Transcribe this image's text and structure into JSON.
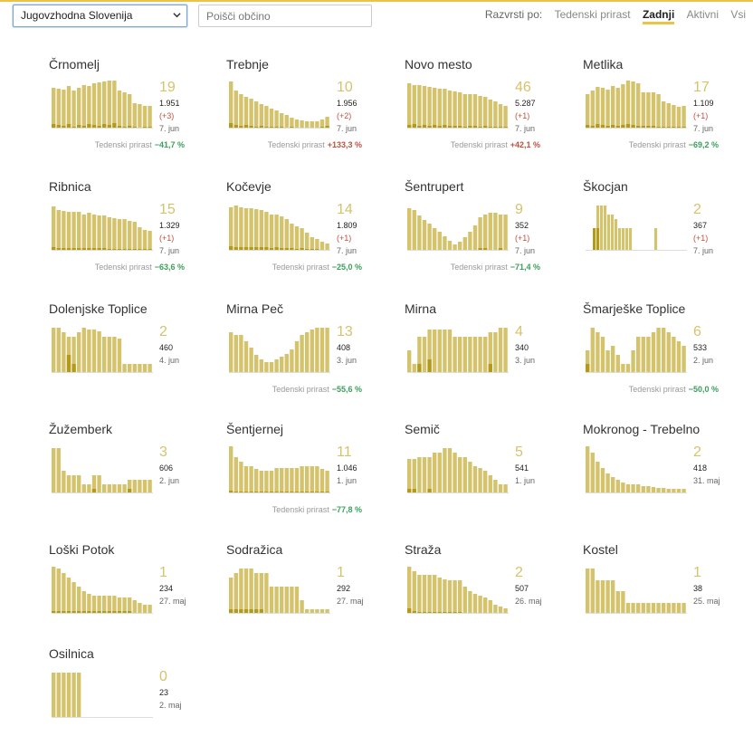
{
  "header": {
    "region": "Jugovzhodna Slovenija",
    "search_placeholder": "Poišči občino",
    "sort_label": "Razvrsti po:",
    "sort_options": [
      "Tedenski prirast",
      "Zadnji",
      "Aktivni",
      "Vsi"
    ],
    "active_sort": "Zadnji"
  },
  "colors": {
    "bar_total": "#d5c36c",
    "bar_new": "#b59a1a",
    "neg_growth": "#3aa05a",
    "pos_growth": "#c0503f",
    "accent": "#e8c547"
  },
  "growth_label": "Tedenski prirast",
  "municipalities": [
    {
      "name": "Črnomelj",
      "num": "19",
      "total": "1.951",
      "delta": "(+3)",
      "date": "7. jun",
      "growth": "−41,7 %",
      "trend": "neg",
      "bars": [
        45,
        44,
        43,
        47,
        42,
        45,
        48,
        47,
        50,
        51,
        52,
        53,
        53,
        42,
        40,
        38,
        28,
        27,
        25,
        25
      ],
      "new": [
        5,
        4,
        3,
        5,
        2,
        4,
        3,
        5,
        4,
        3,
        5,
        4,
        6,
        3,
        2,
        3,
        2,
        1,
        2,
        2
      ]
    },
    {
      "name": "Trebnje",
      "num": "10",
      "total": "1.956",
      "delta": "(+2)",
      "date": "7. jun",
      "growth": "+133,3 %",
      "trend": "pos",
      "bars": [
        52,
        42,
        38,
        35,
        33,
        30,
        27,
        25,
        22,
        20,
        17,
        15,
        12,
        10,
        9,
        8,
        8,
        8,
        10,
        13
      ],
      "new": [
        6,
        4,
        3,
        4,
        3,
        2,
        3,
        2,
        2,
        2,
        2,
        1,
        2,
        1,
        1,
        1,
        1,
        1,
        2,
        3
      ]
    },
    {
      "name": "Novo mesto",
      "num": "46",
      "total": "5.287",
      "delta": "(+1)",
      "date": "7. jun",
      "growth": "+42,1 %",
      "trend": "pos",
      "bars": [
        50,
        48,
        48,
        47,
        46,
        45,
        44,
        44,
        42,
        41,
        40,
        38,
        38,
        38,
        36,
        35,
        32,
        30,
        27,
        25
      ],
      "new": [
        4,
        5,
        3,
        4,
        3,
        4,
        3,
        4,
        3,
        3,
        3,
        2,
        3,
        3,
        2,
        3,
        2,
        2,
        2,
        2
      ]
    },
    {
      "name": "Metlika",
      "num": "17",
      "total": "1.109",
      "delta": "(+1)",
      "date": "7. jun",
      "growth": "−69,2 %",
      "trend": "neg",
      "bars": [
        38,
        42,
        46,
        45,
        43,
        47,
        45,
        49,
        53,
        52,
        50,
        40,
        40,
        40,
        38,
        30,
        28,
        26,
        24,
        25
      ],
      "new": [
        4,
        3,
        5,
        4,
        3,
        4,
        3,
        4,
        5,
        4,
        3,
        3,
        3,
        3,
        2,
        2,
        2,
        2,
        2,
        2
      ]
    },
    {
      "name": "Ribnica",
      "num": "15",
      "total": "1.329",
      "delta": "(+1)",
      "date": "7. jun",
      "growth": "−63,6 %",
      "trend": "neg",
      "bars": [
        49,
        45,
        44,
        43,
        43,
        43,
        40,
        42,
        40,
        39,
        39,
        37,
        36,
        35,
        35,
        33,
        32,
        26,
        23,
        22
      ],
      "new": [
        4,
        3,
        3,
        3,
        3,
        3,
        3,
        3,
        3,
        3,
        3,
        2,
        2,
        2,
        2,
        2,
        2,
        2,
        2,
        2
      ]
    },
    {
      "name": "Kočevje",
      "num": "14",
      "total": "1.809",
      "delta": "(+1)",
      "date": "7. jun",
      "growth": "−25,0 %",
      "trend": "neg",
      "bars": [
        48,
        50,
        48,
        47,
        47,
        46,
        45,
        43,
        40,
        40,
        38,
        35,
        30,
        27,
        25,
        20,
        15,
        13,
        10,
        8
      ],
      "new": [
        5,
        4,
        4,
        4,
        4,
        4,
        4,
        4,
        3,
        4,
        3,
        3,
        3,
        2,
        3,
        2,
        2,
        2,
        1,
        1
      ]
    },
    {
      "name": "Šentrupert",
      "num": "9",
      "total": "352",
      "delta": "(+1)",
      "date": "7. jun",
      "growth": "−71,4 %",
      "trend": "neg",
      "bars": [
        47,
        45,
        39,
        34,
        30,
        25,
        21,
        16,
        11,
        7,
        10,
        15,
        21,
        28,
        37,
        40,
        42,
        42,
        40,
        40
      ],
      "new": [
        0,
        0,
        0,
        0,
        0,
        0,
        0,
        0,
        0,
        0,
        0,
        0,
        0,
        0,
        3,
        3,
        0,
        0,
        3,
        0
      ]
    },
    {
      "name": "Škocjan",
      "num": "2",
      "total": "367",
      "delta": "(+1)",
      "date": "7. jun",
      "growth": "",
      "trend": "",
      "bars": [
        0,
        0,
        25,
        50,
        50,
        50,
        40,
        40,
        35,
        25,
        25,
        25,
        25,
        0,
        0,
        0,
        0,
        0,
        0,
        25,
        0,
        0,
        0,
        0,
        0,
        0,
        0,
        0
      ],
      "new": [
        0,
        0,
        25,
        25,
        0,
        0,
        0,
        0,
        0,
        0,
        0,
        0,
        0,
        0,
        0,
        0,
        0,
        0,
        0,
        0,
        0,
        0,
        0,
        0,
        0,
        0,
        0,
        0
      ]
    },
    {
      "name": "Dolenjske Toplice",
      "num": "2",
      "total": "460",
      "delta": "",
      "date": "4. jun",
      "growth": "",
      "trend": "",
      "bars": [
        50,
        50,
        45,
        40,
        40,
        45,
        50,
        48,
        48,
        46,
        40,
        40,
        40,
        38,
        10,
        10,
        10,
        10,
        10,
        10
      ],
      "new": [
        0,
        0,
        0,
        20,
        10,
        0,
        0,
        0,
        0,
        0,
        0,
        0,
        0,
        0,
        0,
        0,
        0,
        0,
        0,
        0
      ]
    },
    {
      "name": "Mirna Peč",
      "num": "13",
      "total": "408",
      "delta": "",
      "date": "3. jun",
      "growth": "−55,6 %",
      "trend": "neg",
      "bars": [
        45,
        42,
        42,
        35,
        28,
        20,
        15,
        12,
        12,
        15,
        18,
        21,
        26,
        35,
        42,
        45,
        48,
        50,
        50,
        50
      ],
      "new": [
        0,
        0,
        0,
        0,
        0,
        0,
        0,
        0,
        0,
        0,
        0,
        0,
        0,
        0,
        0,
        0,
        0,
        0,
        0,
        0
      ]
    },
    {
      "name": "Mirna",
      "num": "4",
      "total": "340",
      "delta": "",
      "date": "3. jun",
      "growth": "",
      "trend": "",
      "bars": [
        25,
        10,
        40,
        40,
        48,
        48,
        48,
        48,
        48,
        40,
        40,
        40,
        40,
        40,
        40,
        40,
        45,
        45,
        50,
        50
      ],
      "new": [
        0,
        0,
        10,
        0,
        15,
        0,
        0,
        0,
        0,
        0,
        0,
        0,
        0,
        0,
        0,
        0,
        10,
        0,
        0,
        0
      ]
    },
    {
      "name": "Šmarješke Toplice",
      "num": "6",
      "total": "533",
      "delta": "",
      "date": "2. jun",
      "growth": "−50,0 %",
      "trend": "neg",
      "bars": [
        25,
        50,
        45,
        40,
        25,
        30,
        20,
        10,
        10,
        25,
        40,
        40,
        40,
        45,
        50,
        50,
        45,
        40,
        35,
        30
      ],
      "new": [
        10,
        0,
        0,
        0,
        0,
        0,
        0,
        0,
        0,
        0,
        0,
        0,
        0,
        0,
        0,
        0,
        0,
        0,
        0,
        0
      ]
    },
    {
      "name": "Žužemberk",
      "num": "3",
      "total": "606",
      "delta": "",
      "date": "2. jun",
      "growth": "",
      "trend": "",
      "bars": [
        50,
        50,
        25,
        20,
        20,
        20,
        10,
        10,
        20,
        20,
        10,
        10,
        10,
        10,
        10,
        15,
        15,
        15,
        15,
        15
      ],
      "new": [
        0,
        0,
        0,
        0,
        0,
        0,
        0,
        0,
        5,
        0,
        0,
        0,
        0,
        0,
        0,
        5,
        0,
        0,
        0,
        0
      ]
    },
    {
      "name": "Šentjernej",
      "num": "11",
      "total": "1.046",
      "delta": "",
      "date": "1. jun",
      "growth": "−77,8 %",
      "trend": "neg",
      "bars": [
        52,
        40,
        35,
        30,
        30,
        27,
        25,
        25,
        25,
        28,
        28,
        28,
        28,
        28,
        30,
        30,
        30,
        30,
        27,
        25
      ],
      "new": [
        3,
        2,
        2,
        2,
        2,
        2,
        2,
        2,
        2,
        2,
        2,
        2,
        2,
        2,
        2,
        2,
        2,
        2,
        2,
        2
      ]
    },
    {
      "name": "Semič",
      "num": "5",
      "total": "541",
      "delta": "",
      "date": "1. jun",
      "growth": "",
      "trend": "",
      "bars": [
        38,
        38,
        40,
        40,
        40,
        45,
        45,
        50,
        50,
        45,
        40,
        40,
        35,
        30,
        28,
        25,
        20,
        15,
        10,
        10
      ],
      "new": [
        5,
        5,
        0,
        0,
        5,
        0,
        0,
        0,
        0,
        0,
        0,
        0,
        0,
        0,
        0,
        0,
        0,
        0,
        0,
        0
      ]
    },
    {
      "name": "Mokronog - Trebelno",
      "num": "2",
      "total": "418",
      "delta": "",
      "date": "31. maj",
      "growth": "",
      "trend": "",
      "bars": [
        52,
        45,
        35,
        28,
        22,
        18,
        15,
        12,
        10,
        10,
        10,
        8,
        8,
        7,
        6,
        6,
        5,
        5,
        5,
        5
      ],
      "new": [
        0,
        0,
        0,
        0,
        0,
        0,
        0,
        0,
        0,
        0,
        0,
        0,
        0,
        0,
        0,
        0,
        0,
        0,
        0,
        0
      ]
    },
    {
      "name": "Loški Potok",
      "num": "1",
      "total": "234",
      "delta": "",
      "date": "27. maj",
      "growth": "",
      "trend": "",
      "bars": [
        52,
        50,
        45,
        40,
        35,
        30,
        25,
        22,
        20,
        20,
        20,
        20,
        20,
        18,
        18,
        18,
        15,
        12,
        10,
        10
      ],
      "new": [
        3,
        3,
        3,
        3,
        3,
        3,
        3,
        3,
        3,
        3,
        3,
        3,
        3,
        3,
        3,
        3,
        0,
        0,
        0,
        0
      ]
    },
    {
      "name": "Sodražica",
      "num": "1",
      "total": "292",
      "delta": "",
      "date": "27. maj",
      "growth": "",
      "trend": "",
      "bars": [
        40,
        45,
        50,
        50,
        50,
        45,
        45,
        45,
        30,
        30,
        30,
        30,
        30,
        30,
        15,
        5,
        5,
        5,
        5,
        5
      ],
      "new": [
        5,
        5,
        5,
        5,
        5,
        5,
        5,
        0,
        0,
        0,
        0,
        0,
        0,
        0,
        0,
        0,
        0,
        0,
        0,
        0
      ]
    },
    {
      "name": "Straža",
      "num": "2",
      "total": "507",
      "delta": "",
      "date": "26. maj",
      "growth": "",
      "trend": "",
      "bars": [
        52,
        47,
        43,
        43,
        43,
        43,
        40,
        38,
        37,
        37,
        37,
        30,
        25,
        22,
        20,
        18,
        15,
        10,
        8,
        6
      ],
      "new": [
        6,
        3,
        2,
        2,
        2,
        2,
        2,
        2,
        2,
        2,
        2,
        1,
        1,
        1,
        1,
        1,
        1,
        0,
        0,
        0
      ]
    },
    {
      "name": "Kostel",
      "num": "1",
      "total": "38",
      "delta": "",
      "date": "25. maj",
      "growth": "",
      "trend": "",
      "bars": [
        50,
        50,
        37,
        37,
        37,
        37,
        25,
        25,
        12,
        12,
        12,
        12,
        12,
        12,
        12,
        12,
        12,
        12,
        12,
        12
      ],
      "new": [
        0,
        0,
        0,
        0,
        0,
        0,
        0,
        0,
        0,
        0,
        0,
        0,
        0,
        0,
        0,
        0,
        0,
        0,
        0,
        0
      ]
    },
    {
      "name": "Osilnica",
      "num": "0",
      "total": "23",
      "delta": "",
      "date": "2. maj",
      "growth": "",
      "trend": "",
      "bars": [
        50,
        50,
        50,
        50,
        50,
        50,
        0,
        0,
        0,
        0,
        0,
        0,
        0,
        0,
        0,
        0,
        0,
        0,
        0,
        0
      ],
      "new": [
        0,
        0,
        0,
        0,
        0,
        0,
        0,
        0,
        0,
        0,
        0,
        0,
        0,
        0,
        0,
        0,
        0,
        0,
        0,
        0
      ]
    }
  ]
}
